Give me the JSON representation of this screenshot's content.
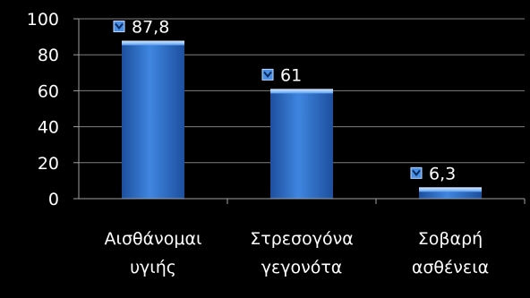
{
  "chart_data": {
    "type": "bar",
    "categories": [
      [
        "Αισθάνομαι",
        "υγιής"
      ],
      [
        "Στρεσογόνα",
        "γεγονότα"
      ],
      [
        "Σοβαρή",
        "ασθένεια"
      ]
    ],
    "values": [
      87.8,
      61,
      6.3
    ],
    "value_labels": [
      "87,8",
      "61",
      "6,3"
    ],
    "ylim": [
      0,
      100
    ],
    "yticks": [
      "0",
      "20",
      "40",
      "60",
      "80",
      "100"
    ],
    "grid": true,
    "title": "",
    "xlabel": "",
    "ylabel": "",
    "colors": {
      "background": "#000000",
      "bar_light": "#9cc8ff",
      "bar_main": "#3f86e0",
      "bar_dark": "#1d4f9e",
      "grid": "#7f7f7f",
      "axis": "#a0a0a0",
      "text": "#ffffff",
      "marker": "#4a8fe6"
    }
  }
}
